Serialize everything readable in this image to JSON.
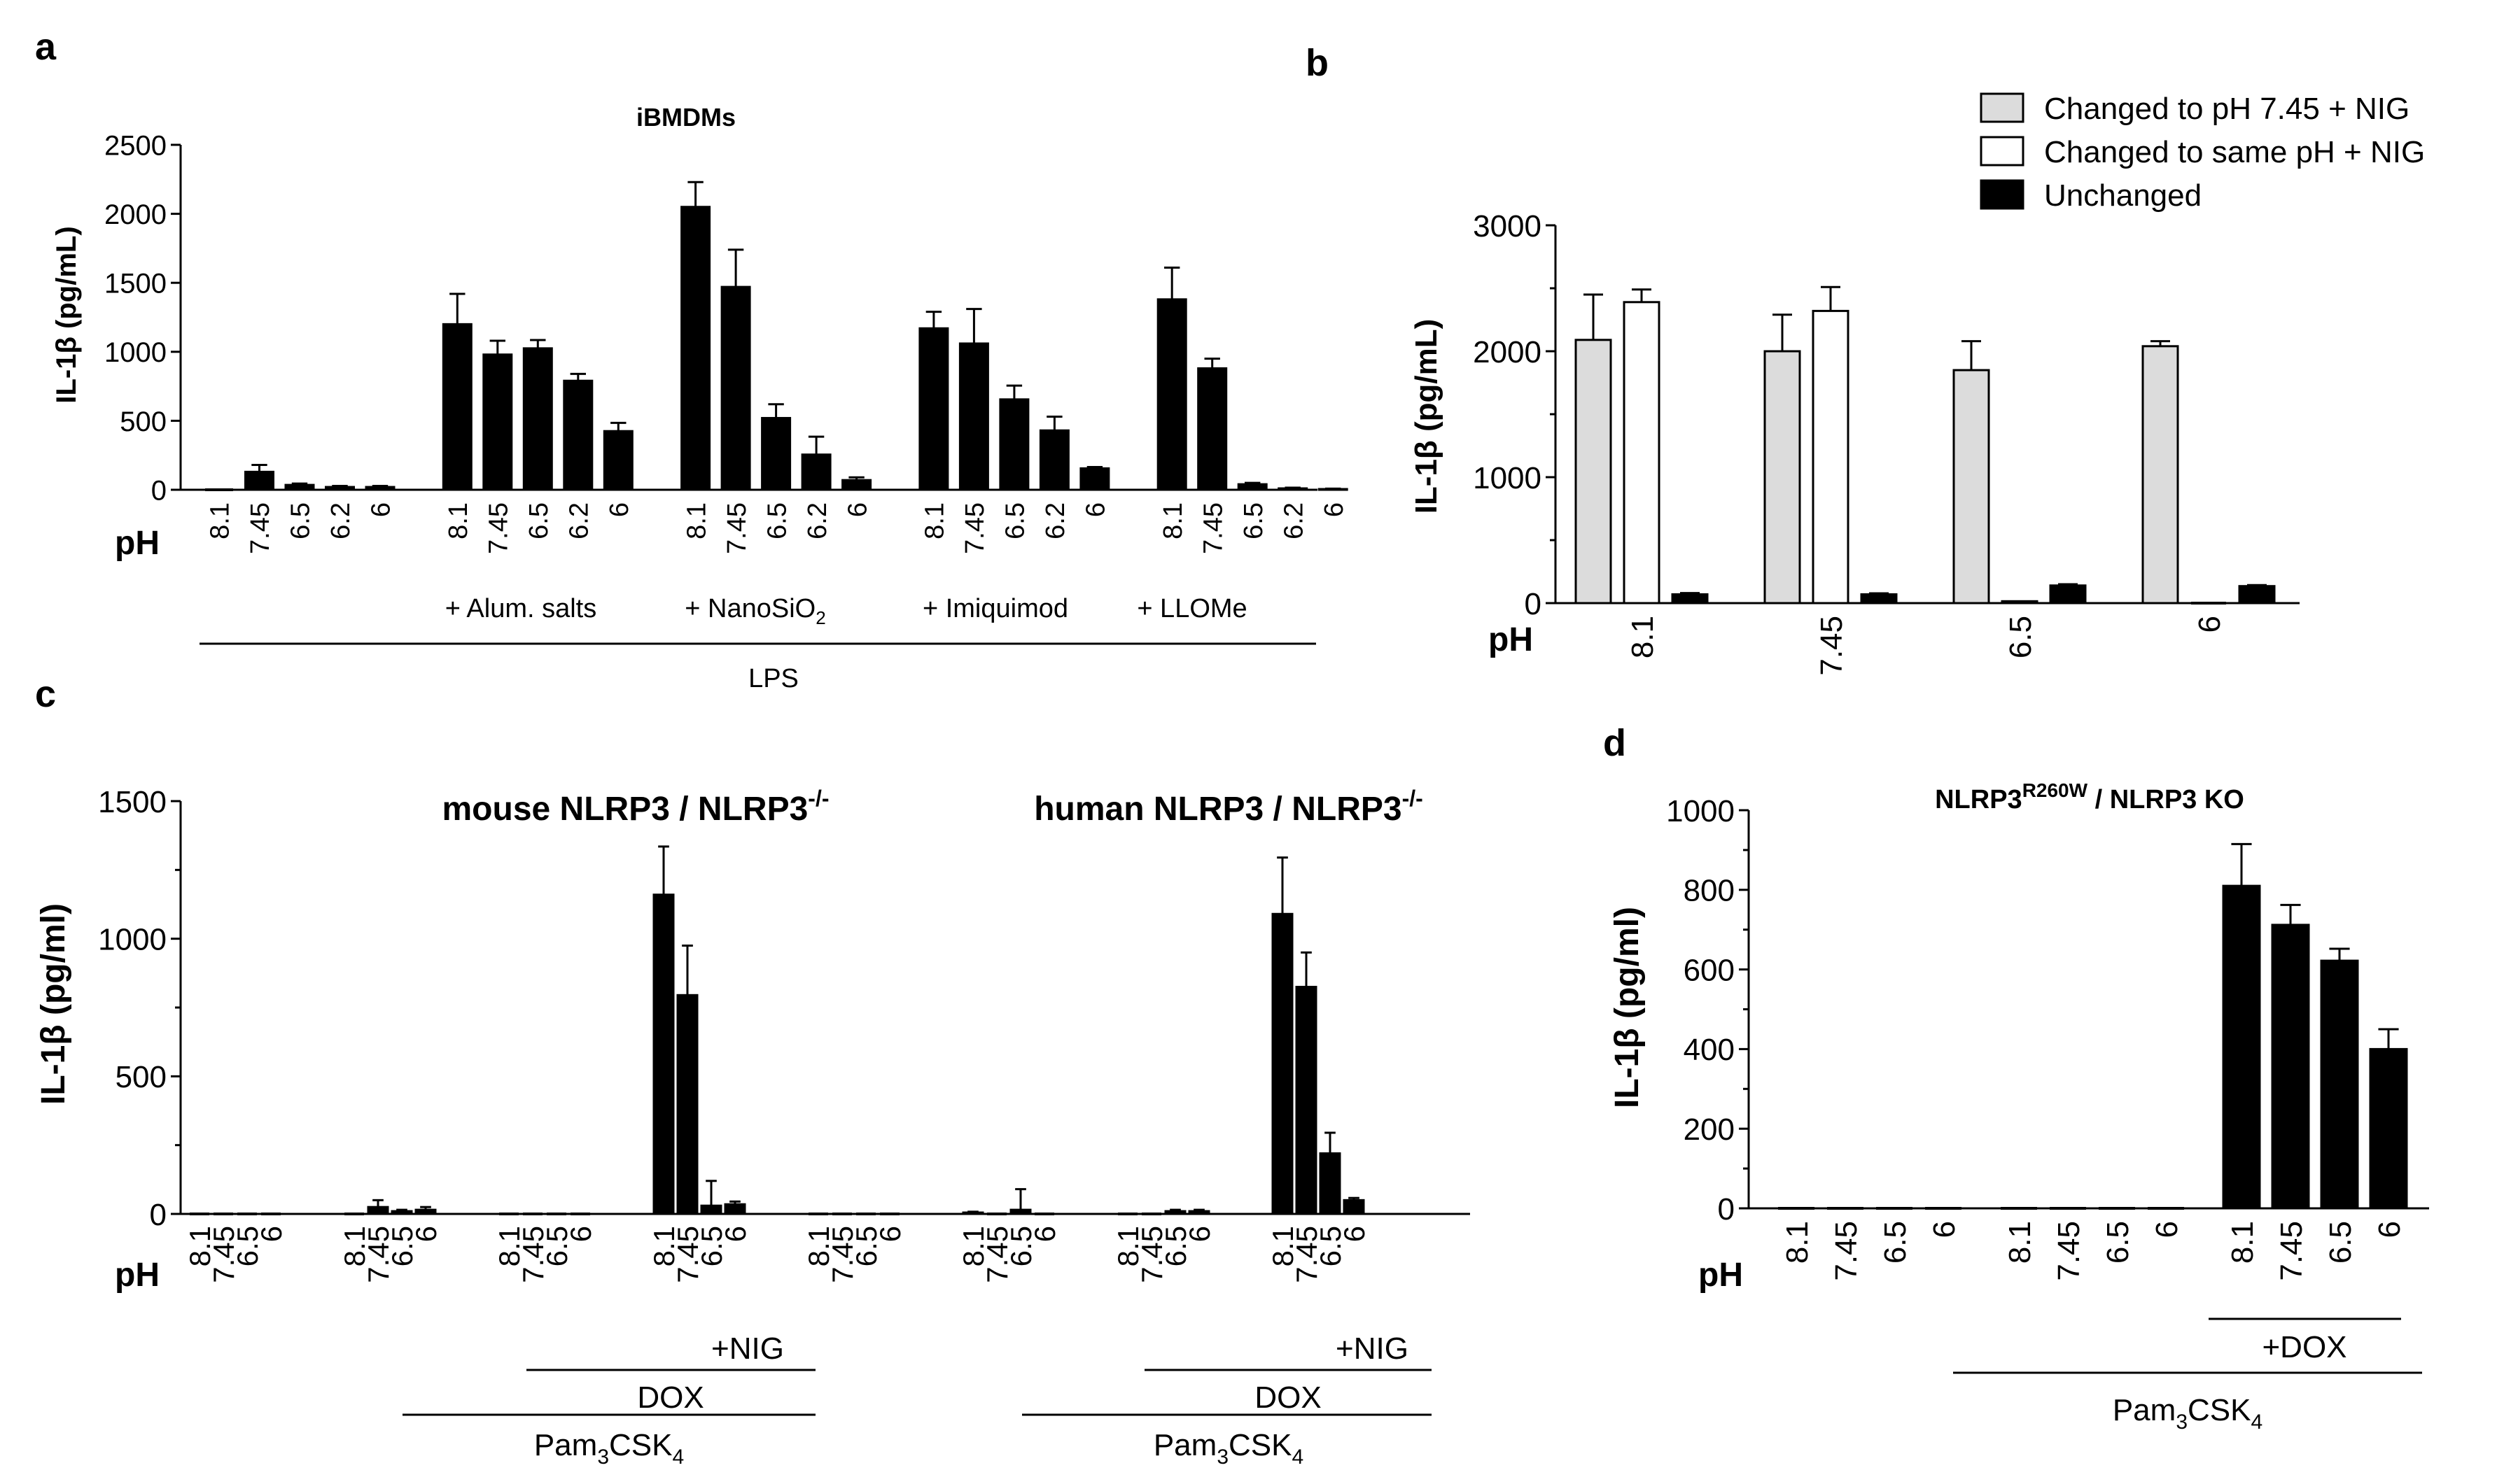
{
  "chart_data": [
    {
      "panel": "a",
      "type": "bar",
      "title": "iBMDMs",
      "ylabel": "IL-1β (pg/mL)",
      "ylim": [
        0,
        2500
      ],
      "yticks": [
        0,
        500,
        1000,
        1500,
        2000,
        2500
      ],
      "xlabel": "pH",
      "categories": [
        "8.1",
        "7.45",
        "6.5",
        "6.2",
        "6",
        "8.1",
        "7.45",
        "6.5",
        "6.2",
        "6",
        "8.1",
        "7.45",
        "6.5",
        "6.2",
        "6",
        "8.1",
        "7.45",
        "6.5",
        "6.2",
        "6",
        "8.1",
        "7.45",
        "6.5",
        "6.2",
        "6"
      ],
      "values": [
        0,
        130,
        35,
        20,
        20,
        1200,
        980,
        1025,
        790,
        425,
        2050,
        1470,
        520,
        255,
        70,
        1170,
        1060,
        655,
        430,
        155,
        1380,
        880,
        40,
        10,
        5
      ],
      "errors": [
        0,
        50,
        10,
        8,
        8,
        220,
        100,
        60,
        50,
        60,
        180,
        270,
        100,
        130,
        20,
        120,
        250,
        100,
        100,
        10,
        230,
        70,
        10,
        5,
        3
      ],
      "groups": [
        "+ Alum. salts",
        "+ NanoSiO2",
        "+ Imiquimod",
        "+ LLOMe"
      ],
      "bracket": "LPS"
    },
    {
      "panel": "b",
      "type": "bar",
      "ylabel": "IL-1β (pg/mL)",
      "ylim": [
        0,
        3000
      ],
      "yticks": [
        0,
        1000,
        2000,
        3000
      ],
      "xlabel": "pH",
      "categories": [
        "8.1",
        "7.45",
        "6.5",
        "6"
      ],
      "series": [
        {
          "name": "Changed to pH 7.45 + NIG",
          "color": "#dcdcdc",
          "values": [
            2090,
            2000,
            1850,
            2040
          ],
          "errors": [
            360,
            290,
            230,
            40
          ]
        },
        {
          "name": "Changed to same pH + NIG",
          "color": "#ffffff",
          "values": [
            2390,
            2320,
            15,
            0
          ],
          "errors": [
            100,
            190,
            0,
            0
          ]
        },
        {
          "name": "Unchanged",
          "color": "#000000",
          "values": [
            70,
            70,
            140,
            135
          ],
          "errors": [
            10,
            8,
            10,
            8
          ]
        }
      ]
    },
    {
      "panel": "c",
      "type": "bar",
      "ylabel": "IL-1β (pg/ml)",
      "ylim": [
        0,
        1500
      ],
      "yticks": [
        0,
        500,
        1000,
        1500
      ],
      "xlabel": "pH",
      "subtitles": [
        "mouse NLRP3 / NLRP3",
        "human NLRP3 / NLRP3"
      ],
      "subtitle_superscript": "-/-",
      "categories": [
        "8.1",
        "7.45",
        "6.5",
        "6",
        "8.1",
        "7.45",
        "6.5",
        "6",
        "8.1",
        "7.45",
        "6.5",
        "6",
        "8.1",
        "7.45",
        "6.5",
        "6",
        "8.1",
        "7.45",
        "6.5",
        "6",
        "8.1",
        "7.45",
        "6.5",
        "6",
        "8.1",
        "7.45",
        "6.5",
        "6",
        "8.1",
        "7.45",
        "6.5",
        "6"
      ],
      "values": [
        0,
        0,
        0,
        0,
        0,
        25,
        10,
        15,
        0,
        0,
        0,
        0,
        1160,
        795,
        30,
        35,
        0,
        0,
        0,
        0,
        5,
        0,
        15,
        0,
        0,
        0,
        10,
        10,
        1090,
        825,
        220,
        50
      ],
      "errors": [
        0,
        0,
        0,
        0,
        0,
        25,
        5,
        10,
        0,
        0,
        0,
        0,
        175,
        180,
        90,
        10,
        0,
        0,
        0,
        0,
        3,
        0,
        75,
        0,
        0,
        0,
        5,
        5,
        205,
        125,
        75,
        8
      ],
      "labels": {
        "nig": "+NIG",
        "dox": "DOX",
        "pam": "Pam",
        "pam_sub": "3",
        "pam_rest": "CSK",
        "pam_sub2": "4"
      }
    },
    {
      "panel": "d",
      "type": "bar",
      "title": "NLRP3",
      "title_superscript": "R260W",
      "title_rest": " / NLRP3 KO",
      "ylabel": "IL-1β (pg/ml)",
      "ylim": [
        0,
        1000
      ],
      "yticks": [
        0,
        200,
        400,
        600,
        800,
        1000
      ],
      "xlabel": "pH",
      "categories": [
        "8.1",
        "7.45",
        "6.5",
        "6",
        "8.1",
        "7.45",
        "6.5",
        "6",
        "8.1",
        "7.45",
        "6.5",
        "6"
      ],
      "values": [
        0,
        0,
        0,
        0,
        0,
        0,
        0,
        0,
        810,
        712,
        622,
        400
      ],
      "errors": [
        0,
        0,
        0,
        0,
        0,
        0,
        0,
        0,
        105,
        50,
        30,
        50
      ],
      "labels": {
        "dox": "+DOX",
        "pam": "Pam",
        "pam_sub": "3",
        "pam_rest": "CSK",
        "pam_sub2": "4"
      }
    }
  ],
  "panel_labels": [
    "a",
    "b",
    "c",
    "d"
  ],
  "group_labels_a": {
    "alum": "+ Alum. salts",
    "nano": "+ NanoSiO",
    "nano_sub": "2",
    "imiq": "+ Imiquimod",
    "llome": "+ LLOMe",
    "lps": "LPS"
  }
}
